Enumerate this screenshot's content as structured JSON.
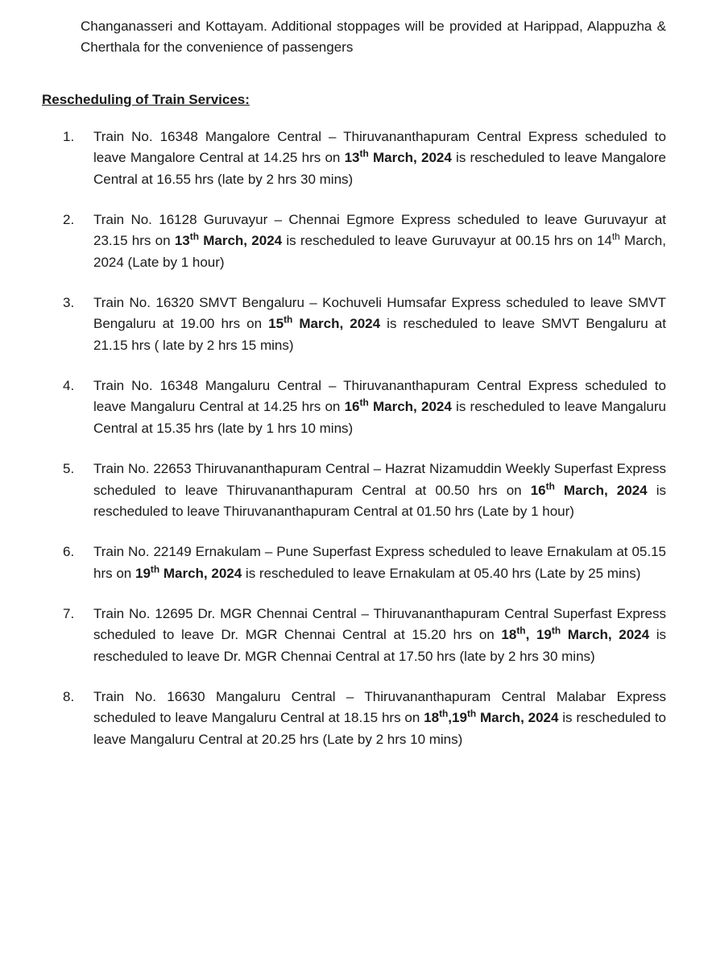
{
  "intro": "Changanasseri and Kottayam.  Additional stoppages will be provided at Harippad, Alappuzha & Cherthala for the convenience of passengers",
  "heading": "Rescheduling of Train Services:",
  "items": [
    {
      "pre": "Train No. 16348 Mangalore Central – Thiruvananthapuram Central Express scheduled to leave Mangalore Central at 14.25 hrs on ",
      "date_day": "13",
      "date_sup": "th",
      "date_rest": " March, 2024",
      "post": " is rescheduled to leave Mangalore Central at 16.55 hrs (late by 2 hrs 30 mins)"
    },
    {
      "pre": "Train No. 16128   Guruvayur – Chennai Egmore Express scheduled to leave Guruvayur at 23.15 hrs on ",
      "date_day": "13",
      "date_sup": "th",
      "date_rest": " March, 2024",
      "mid": " is rescheduled to leave Guruvayur at 00.15 hrs on 14",
      "mid_sup": "th",
      "post": " March, 2024   (Late by 1 hour)"
    },
    {
      "pre": "Train No. 16320 SMVT Bengaluru – Kochuveli Humsafar Express scheduled to leave SMVT Bengaluru at 19.00 hrs on ",
      "date_day": "15",
      "date_sup": "th",
      "date_rest": " March, 2024",
      "post": " is rescheduled to leave SMVT Bengaluru at 21.15 hrs ( late by 2 hrs 15 mins)"
    },
    {
      "pre": "Train No. 16348 Mangaluru Central – Thiruvananthapuram Central Express scheduled to leave Mangaluru Central at 14.25 hrs on ",
      "date_day": "16",
      "date_sup": "th",
      "date_rest": " March, 2024",
      "post": " is rescheduled to leave Mangaluru Central at 15.35 hrs (late by 1 hrs 10 mins)"
    },
    {
      "pre": "Train No. 22653 Thiruvananthapuram Central – Hazrat Nizamuddin Weekly Superfast Express scheduled to leave Thiruvananthapuram Central at 00.50 hrs on ",
      "date_day": "16",
      "date_sup": "th",
      "date_rest": " March, 2024",
      "post": " is rescheduled to leave Thiruvananthapuram Central at 01.50 hrs (Late by 1 hour)"
    },
    {
      "pre": "Train No. 22149 Ernakulam – Pune Superfast Express scheduled to leave Ernakulam at 05.15 hrs on ",
      "date_day": "19",
      "date_sup": "th",
      "date_rest": " March, 2024",
      "post": " is rescheduled to leave Ernakulam at 05.40 hrs (Late by 25 mins)"
    },
    {
      "pre": "Train No. 12695 Dr. MGR Chennai Central – Thiruvananthapuram Central Superfast Express scheduled to leave Dr. MGR Chennai Central at 15.20 hrs on ",
      "date_day": "18",
      "date_sup": "th",
      "date_rest": ", 19",
      "date_sup2": "th",
      "date_rest2": " March, 2024",
      "post": " is rescheduled to leave Dr. MGR Chennai Central at 17.50 hrs (late by 2 hrs 30 mins)"
    },
    {
      "pre": "Train No. 16630 Mangaluru Central – Thiruvananthapuram Central Malabar Express scheduled to leave Mangaluru Central at 18.15 hrs on ",
      "date_day": "18",
      "date_sup": "th",
      "date_rest": ",19",
      "date_sup2": "th",
      "date_rest2": " March, 2024 ",
      "post": " is rescheduled to leave Mangaluru Central at 20.25 hrs (Late by 2 hrs 10 mins)"
    }
  ]
}
